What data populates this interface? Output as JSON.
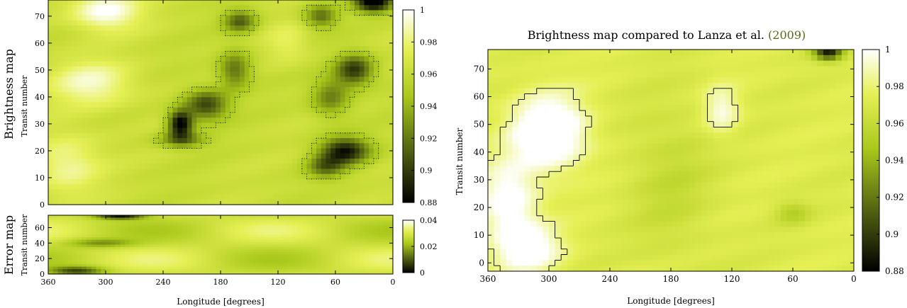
{
  "colors": {
    "low": "#000000",
    "mid_dark": "#4b5a10",
    "mid": "#a9c81a",
    "high": "#e6f056",
    "top": "#ffffff",
    "contour": "#000000"
  },
  "chart_data": [
    {
      "id": "brightness",
      "type": "heatmap",
      "title": "",
      "row_label": "Brightness map",
      "xlabel": "",
      "ylabel": "Transit number",
      "xlim": [
        360,
        0
      ],
      "ylim": [
        0,
        76
      ],
      "x_ticks": [
        "360",
        "300",
        "240",
        "180",
        "120",
        "60",
        "0"
      ],
      "y_ticks": [
        "0",
        "10",
        "20",
        "30",
        "40",
        "50",
        "60",
        "70"
      ],
      "colorbar": {
        "range": [
          0.88,
          1.0
        ],
        "ticks": [
          "1",
          "0.98",
          "0.96",
          "0.94",
          "0.92",
          "0.9",
          "0.88"
        ]
      },
      "background_value": 0.962,
      "features": [
        {
          "lon": 222,
          "transit": 30,
          "depth": 0.085,
          "sigma_lon": 9,
          "sigma_t": 3.5
        },
        {
          "lon": 195,
          "transit": 37,
          "depth": 0.06,
          "sigma_lon": 16,
          "sigma_t": 4
        },
        {
          "lon": 220,
          "transit": 24,
          "depth": 0.04,
          "sigma_lon": 18,
          "sigma_t": 2
        },
        {
          "lon": 165,
          "transit": 50,
          "depth": 0.045,
          "sigma_lon": 12,
          "sigma_t": 5
        },
        {
          "lon": 160,
          "transit": 68,
          "depth": 0.05,
          "sigma_lon": 12,
          "sigma_t": 3
        },
        {
          "lon": 50,
          "transit": 20,
          "depth": 0.075,
          "sigma_lon": 18,
          "sigma_t": 3.5
        },
        {
          "lon": 70,
          "transit": 14,
          "depth": 0.045,
          "sigma_lon": 14,
          "sigma_t": 3
        },
        {
          "lon": 40,
          "transit": 50,
          "depth": 0.065,
          "sigma_lon": 14,
          "sigma_t": 4
        },
        {
          "lon": 65,
          "transit": 40,
          "depth": 0.04,
          "sigma_lon": 14,
          "sigma_t": 5
        },
        {
          "lon": 20,
          "transit": 75,
          "depth": 0.09,
          "sigma_lon": 14,
          "sigma_t": 2.5
        },
        {
          "lon": 75,
          "transit": 70,
          "depth": 0.045,
          "sigma_lon": 12,
          "sigma_t": 3
        },
        {
          "lon": 300,
          "transit": 72,
          "depth": -0.04,
          "sigma_lon": 25,
          "sigma_t": 5
        },
        {
          "lon": 315,
          "transit": 45,
          "depth": -0.03,
          "sigma_lon": 30,
          "sigma_t": 6
        },
        {
          "lon": 340,
          "transit": 15,
          "depth": -0.025,
          "sigma_lon": 25,
          "sigma_t": 8
        },
        {
          "lon": 110,
          "transit": 60,
          "depth": -0.015,
          "sigma_lon": 15,
          "sigma_t": 5
        }
      ]
    },
    {
      "id": "error",
      "type": "heatmap",
      "title": "",
      "row_label": "Error map",
      "xlabel": "Longitude [degrees]",
      "ylabel": "Transit number",
      "xlim": [
        360,
        0
      ],
      "ylim": [
        0,
        76
      ],
      "x_ticks": [
        "360",
        "300",
        "240",
        "180",
        "120",
        "60",
        "0"
      ],
      "y_ticks": [
        "0",
        "20",
        "40",
        "60"
      ],
      "colorbar": {
        "range": [
          0,
          0.04
        ],
        "ticks": [
          "0.04",
          "0.02",
          "0"
        ]
      },
      "background_value": 0.028,
      "features": [
        {
          "lon": 285,
          "transit": 75,
          "depth": 0.027,
          "sigma_lon": 18,
          "sigma_t": 3
        },
        {
          "lon": 330,
          "transit": 4,
          "depth": 0.02,
          "sigma_lon": 20,
          "sigma_t": 4
        },
        {
          "lon": 305,
          "transit": 40,
          "depth": 0.012,
          "sigma_lon": 25,
          "sigma_t": 4
        }
      ]
    },
    {
      "id": "comparison",
      "type": "heatmap",
      "title": "Brightness map compared to Lanza et al. (2009)",
      "title_plain": "Brightness map compared to Lanza et al. ",
      "title_year": "(2009)",
      "xlabel": "Longitude [degrees]",
      "ylabel": "Transit number",
      "xlim": [
        360,
        0
      ],
      "ylim": [
        -3,
        77
      ],
      "x_ticks": [
        "360",
        "300",
        "240",
        "180",
        "120",
        "60",
        "0"
      ],
      "y_ticks": [
        "0",
        "10",
        "20",
        "30",
        "40",
        "50",
        "60",
        "70"
      ],
      "colorbar": {
        "range": [
          0.88,
          1.0
        ],
        "ticks": [
          "1",
          "0.98",
          "0.96",
          "0.94",
          "0.92",
          "0.9",
          "0.88"
        ]
      },
      "background_value": 0.972,
      "features": [
        {
          "lon": 300,
          "transit": 47,
          "depth": -0.05,
          "sigma_lon": 25,
          "sigma_t": 9
        },
        {
          "lon": 340,
          "transit": 22,
          "depth": -0.035,
          "sigma_lon": 20,
          "sigma_t": 10
        },
        {
          "lon": 320,
          "transit": 5,
          "depth": -0.035,
          "sigma_lon": 22,
          "sigma_t": 6
        },
        {
          "lon": 130,
          "transit": 55,
          "depth": -0.025,
          "sigma_lon": 12,
          "sigma_t": 6
        },
        {
          "lon": 25,
          "transit": 76,
          "depth": 0.08,
          "sigma_lon": 10,
          "sigma_t": 2
        },
        {
          "lon": 60,
          "transit": 18,
          "depth": 0.018,
          "sigma_lon": 12,
          "sigma_t": 3
        },
        {
          "lon": 180,
          "transit": 30,
          "depth": 0.012,
          "sigma_lon": 30,
          "sigma_t": 20
        }
      ]
    }
  ]
}
